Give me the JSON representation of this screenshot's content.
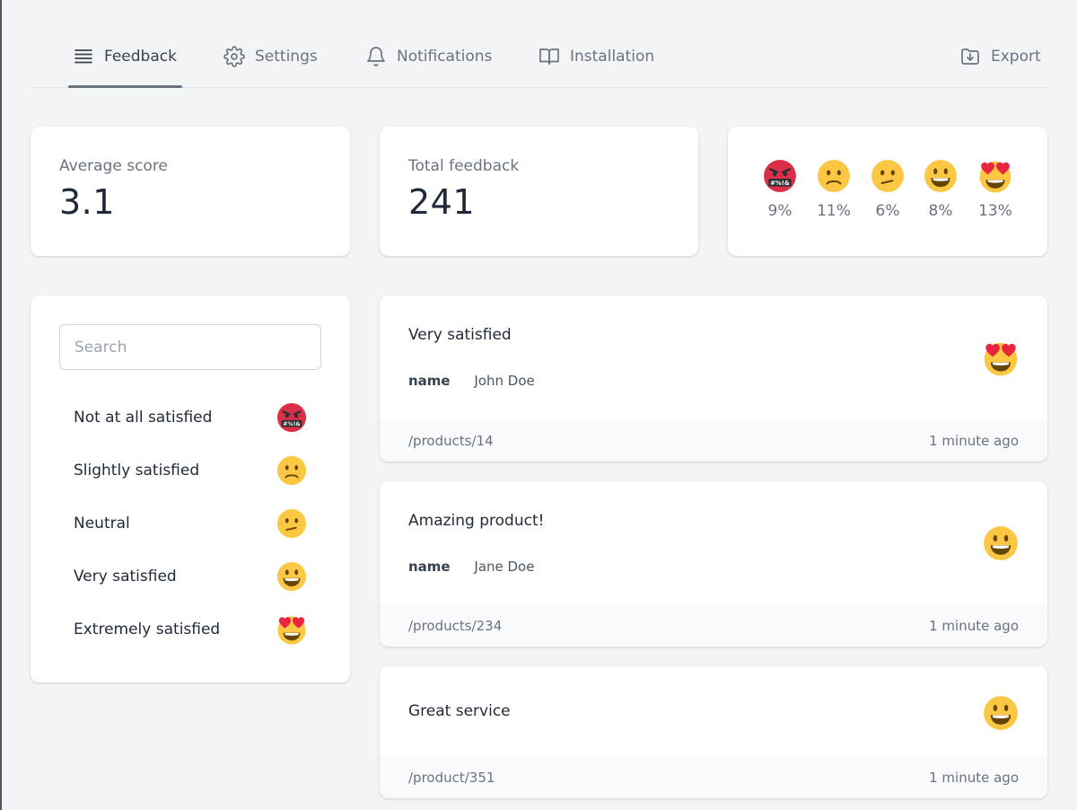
{
  "nav": {
    "tabs": [
      {
        "label": "Feedback",
        "icon": "list-icon",
        "active": true
      },
      {
        "label": "Settings",
        "icon": "gear-icon"
      },
      {
        "label": "Notifications",
        "icon": "bell-icon"
      },
      {
        "label": "Installation",
        "icon": "book-icon"
      }
    ],
    "export_label": "Export"
  },
  "stats": {
    "average_label": "Average score",
    "average_value": "3.1",
    "total_label": "Total feedback",
    "total_value": "241"
  },
  "distribution": [
    {
      "emoji": "angry-face-icon",
      "pct": "9%"
    },
    {
      "emoji": "frowning-face-icon",
      "pct": "11%"
    },
    {
      "emoji": "confused-face-icon",
      "pct": "6%"
    },
    {
      "emoji": "grinning-face-icon",
      "pct": "8%"
    },
    {
      "emoji": "heart-eyes-face-icon",
      "pct": "13%"
    }
  ],
  "filter": {
    "search_placeholder": "Search",
    "items": [
      {
        "label": "Not at all satisfied",
        "emoji": "angry-face-icon"
      },
      {
        "label": "Slightly satisfied",
        "emoji": "frowning-face-icon"
      },
      {
        "label": "Neutral",
        "emoji": "confused-face-icon"
      },
      {
        "label": "Very satisfied",
        "emoji": "grinning-face-icon"
      },
      {
        "label": "Extremely satisfied",
        "emoji": "heart-eyes-face-icon"
      }
    ]
  },
  "feedback": [
    {
      "title": "Very satisfied",
      "meta_key": "name",
      "meta_value": "John Doe",
      "path": "/products/14",
      "time": "1 minute ago",
      "emoji": "heart-eyes-face-icon"
    },
    {
      "title": "Amazing product!",
      "meta_key": "name",
      "meta_value": "Jane Doe",
      "path": "/products/234",
      "time": "1 minute ago",
      "emoji": "grinning-face-icon"
    },
    {
      "title": "Great service",
      "path": "/product/351",
      "time": "1 minute ago",
      "emoji": "grinning-face-icon"
    }
  ],
  "colors": {
    "background": "#f3f4f6",
    "card": "#ffffff",
    "emoji_yellow": "#fcc843",
    "angry_red": "#da2f47",
    "heart_red": "#e9253f"
  }
}
